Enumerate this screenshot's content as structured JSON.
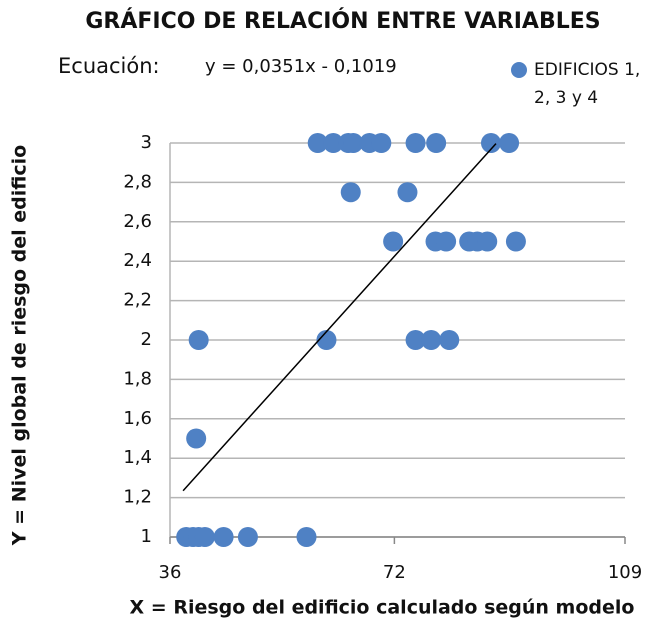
{
  "chart_data": {
    "type": "scatter",
    "title": "GRÁFICO DE RELACIÓN ENTRE VARIABLES",
    "equation_label": "Ecuación:",
    "equation": "y = 0,0351x - 0,1019",
    "x_label": "X = Riesgo del edificio calculado según modelo",
    "y_label": "Y = Nivel global de riesgo del edificio",
    "xlim": [
      36,
      109
    ],
    "xticks": [
      36,
      72,
      109
    ],
    "ylim": [
      1,
      3
    ],
    "yticks": [
      1,
      {
        "value": 1.2,
        "label": "1,2"
      },
      {
        "value": 1.4,
        "label": "1,4"
      },
      {
        "value": 1.6,
        "label": "1,6"
      },
      {
        "value": 1.8,
        "label": "1,8"
      },
      2,
      {
        "value": 2.2,
        "label": "2,2"
      },
      {
        "value": 2.4,
        "label": "2,4"
      },
      {
        "value": 2.6,
        "label": "2,6"
      },
      {
        "value": 2.8,
        "label": "2,8"
      },
      3
    ],
    "grid": true,
    "series": [
      {
        "name": "EDIFICIOS 1, 2, 3 y 4",
        "color": "#4f81c4",
        "x": [
          59.7,
          62.2,
          64.6,
          65.4,
          68,
          69.9,
          75.4,
          78.7,
          87.5,
          90.4,
          65,
          74.1,
          71.8,
          78.6,
          80.3,
          84,
          85.3,
          86.9,
          91.5,
          40.6,
          61.1,
          75.4,
          77.9,
          80.8,
          40.2,
          38.6,
          39.7,
          40.6,
          41.6,
          44.6,
          48.5,
          57.9
        ],
        "values": [
          3,
          3,
          3,
          3,
          3,
          3,
          3,
          3,
          3,
          3,
          2.75,
          2.75,
          2.5,
          2.5,
          2.5,
          2.5,
          2.5,
          2.5,
          2.5,
          2,
          2,
          2,
          2,
          2,
          1.5,
          1,
          1,
          1,
          1,
          1,
          1,
          1
        ]
      }
    ],
    "trendline": {
      "x": [
        38.1,
        88.3
      ],
      "values": [
        1.235,
        2.997
      ],
      "color": "#000000"
    }
  }
}
